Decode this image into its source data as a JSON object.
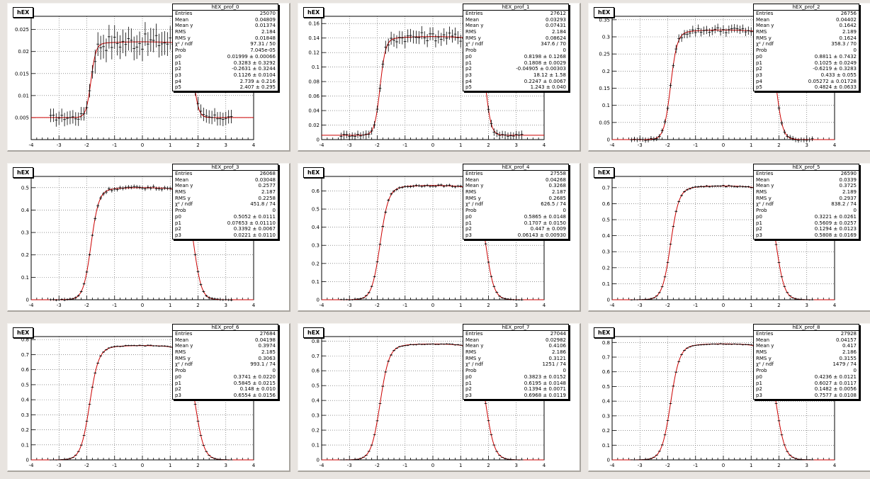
{
  "hist_label": "hEX",
  "stat_keys": [
    "Entries",
    "Mean",
    "Mean y",
    "RMS",
    "RMS y",
    "χ² / ndf",
    "Prob"
  ],
  "colors": {
    "fit": "#cc0000",
    "points": "#000000",
    "grid": "#555555",
    "canvas": "#e8e4e0"
  },
  "chart_data": [
    {
      "type": "scatter",
      "title": "hEX_prof_0",
      "xlabel": "",
      "ylabel": "",
      "xlim": [
        -4,
        4
      ],
      "ylim": [
        0,
        0.028
      ],
      "grid": true,
      "legend": "top-right",
      "x_ticks": [
        "-4",
        "-3",
        "-2",
        "-1",
        "0",
        "1",
        "2",
        "3",
        "4"
      ],
      "y_ticks": [
        "0.005",
        "0.01",
        "0.015",
        "0.02",
        "0.025"
      ],
      "y_tick_values": [
        0.005,
        0.01,
        0.015,
        0.02,
        0.025
      ],
      "base": 0.005,
      "plateau": 0.0222,
      "edge": 1.85,
      "width": 0.09,
      "noise": 0.0018,
      "fit_range": [
        -4,
        4
      ],
      "stats": {
        "title": "hEX_prof_0",
        "values": [
          "25070",
          "0.04809",
          "0.01374",
          "2.184",
          "0.01848",
          "97.31 / 50",
          "7.045e-05"
        ],
        "params": [
          [
            "p0",
            "0.01999 ± 0.00066"
          ],
          [
            "p1",
            "0.3283 ± 0.3292"
          ],
          [
            "p2",
            "-0.2631 ± 0.3244"
          ],
          [
            "p3",
            "0.1126 ± 0.0104"
          ],
          [
            "p4",
            "2.739 ± 0.216"
          ],
          [
            "p5",
            "2.407 ± 0.295"
          ]
        ]
      }
    },
    {
      "type": "scatter",
      "title": "hEX_prof_1",
      "xlabel": "",
      "ylabel": "",
      "xlim": [
        -4,
        4
      ],
      "ylim": [
        0,
        0.17
      ],
      "grid": true,
      "legend": "top-right",
      "x_ticks": [
        "-4",
        "-3",
        "-2",
        "-1",
        "0",
        "1",
        "2",
        "3",
        "4"
      ],
      "y_ticks": [
        "0",
        "0.02",
        "0.04",
        "0.06",
        "0.08",
        "0.1",
        "0.12",
        "0.14",
        "0.16"
      ],
      "y_tick_values": [
        0,
        0.02,
        0.04,
        0.06,
        0.08,
        0.1,
        0.12,
        0.14,
        0.16
      ],
      "base": 0.006,
      "plateau": 0.142,
      "edge": 1.9,
      "width": 0.1,
      "noise": 0.006,
      "fit_range": [
        -4,
        4
      ],
      "stats": {
        "title": "hEX_prof_1",
        "values": [
          "27612",
          "0.03293",
          "0.07431",
          "2.184",
          "0.08624",
          "347.6 / 70",
          "0"
        ],
        "params": [
          [
            "p0",
            "0.8198 ± 0.1268"
          ],
          [
            "p1",
            "0.1808 ± 0.0029"
          ],
          [
            "p2",
            "-0.04905 ± 0.00303"
          ],
          [
            "p3",
            "18.12 ± 1.58"
          ],
          [
            "p4",
            "0.2247 ± 0.0067"
          ],
          [
            "p5",
            "1.243 ± 0.040"
          ]
        ]
      }
    },
    {
      "type": "scatter",
      "title": "hEX_prof_2",
      "xlabel": "",
      "ylabel": "",
      "xlim": [
        -4,
        4
      ],
      "ylim": [
        0,
        0.36
      ],
      "grid": true,
      "legend": "top-right",
      "x_ticks": [
        "-4",
        "-3",
        "-2",
        "-1",
        "0",
        "1",
        "2",
        "3",
        "4"
      ],
      "y_ticks": [
        "0",
        "0.05",
        "0.1",
        "0.15",
        "0.2",
        "0.25",
        "0.3",
        "0.35"
      ],
      "y_tick_values": [
        0,
        0.05,
        0.1,
        0.15,
        0.2,
        0.25,
        0.3,
        0.35
      ],
      "base": 0.0,
      "plateau": 0.32,
      "edge": 1.9,
      "width": 0.12,
      "noise": 0.008,
      "fit_range": [
        -4,
        4
      ],
      "stats": {
        "title": "hEX_prof_2",
        "values": [
          "26756",
          "0.04402",
          "0.1642",
          "2.189",
          "0.1624",
          "358.3 / 70",
          "0"
        ],
        "params": [
          [
            "p0",
            "0.8811 ± 0.7432"
          ],
          [
            "p1",
            "0.1025 ± 0.0249"
          ],
          [
            "p2",
            "-0.6219 ± 0.3283"
          ],
          [
            "p3",
            "0.433 ± 0.055"
          ],
          [
            "p4",
            "0.05272 ± 0.01728"
          ],
          [
            "p5",
            "0.4824 ± 0.0633"
          ]
        ]
      }
    },
    {
      "type": "scatter",
      "title": "hEX_prof_3",
      "xlabel": "",
      "ylabel": "",
      "xlim": [
        -4,
        4
      ],
      "ylim": [
        0,
        0.55
      ],
      "grid": true,
      "legend": "top-right",
      "x_ticks": [
        "-4",
        "-3",
        "-2",
        "-1",
        "0",
        "1",
        "2",
        "3",
        "4"
      ],
      "y_ticks": [
        "0",
        "0.1",
        "0.2",
        "0.3",
        "0.4",
        "0.5"
      ],
      "y_tick_values": [
        0,
        0.1,
        0.2,
        0.3,
        0.4,
        0.5
      ],
      "base": 0.0,
      "plateau": 0.5,
      "edge": 1.85,
      "width": 0.14,
      "noise": 0.006,
      "fit_range": [
        -4,
        4
      ],
      "stats": {
        "title": "hEX_prof_3",
        "values": [
          "26068",
          "0.03048",
          "0.2577",
          "2.187",
          "0.2258",
          "451.8 / 74",
          "0"
        ],
        "params": [
          [
            "p0",
            "0.5052 ± 0.0111"
          ],
          [
            "p1",
            "0.07653 ± 0.01110"
          ],
          [
            "p2",
            "0.3392 ± 0.0067"
          ],
          [
            "p3",
            "0.0221 ± 0.0110"
          ]
        ]
      }
    },
    {
      "type": "scatter",
      "title": "hEX_prof_4",
      "xlabel": "",
      "ylabel": "",
      "xlim": [
        -4,
        4
      ],
      "ylim": [
        0,
        0.68
      ],
      "grid": true,
      "legend": "top-right",
      "x_ticks": [
        "-4",
        "-3",
        "-2",
        "-1",
        "0",
        "1",
        "2",
        "3",
        "4"
      ],
      "y_ticks": [
        "0",
        "0.1",
        "0.2",
        "0.3",
        "0.4",
        "0.5",
        "0.6"
      ],
      "y_tick_values": [
        0,
        0.1,
        0.2,
        0.3,
        0.4,
        0.5,
        0.6
      ],
      "base": 0.0,
      "plateau": 0.63,
      "edge": 1.9,
      "width": 0.15,
      "noise": 0.005,
      "fit_range": [
        -4,
        4
      ],
      "stats": {
        "title": "hEX_prof_4",
        "values": [
          "27558",
          "0.04268",
          "0.3268",
          "2.187",
          "0.2685",
          "626.5 / 74",
          "0"
        ],
        "params": [
          [
            "p0",
            "0.5865 ± 0.0148"
          ],
          [
            "p1",
            "0.1707 ± 0.0150"
          ],
          [
            "p2",
            "0.447 ± 0.009"
          ],
          [
            "p3",
            "0.06143 ± 0.00930"
          ]
        ]
      }
    },
    {
      "type": "scatter",
      "title": "hEX_prof_5",
      "xlabel": "",
      "ylabel": "",
      "xlim": [
        -4,
        4
      ],
      "ylim": [
        0,
        0.77
      ],
      "grid": true,
      "legend": "top-right",
      "x_ticks": [
        "-4",
        "-3",
        "-2",
        "-1",
        "0",
        "1",
        "2",
        "3",
        "4"
      ],
      "y_ticks": [
        "0",
        "0.1",
        "0.2",
        "0.3",
        "0.4",
        "0.5",
        "0.6",
        "0.7"
      ],
      "y_tick_values": [
        0,
        0.1,
        0.2,
        0.3,
        0.4,
        0.5,
        0.6,
        0.7
      ],
      "base": 0.0,
      "plateau": 0.71,
      "edge": 1.9,
      "width": 0.15,
      "noise": 0.004,
      "fit_range": [
        -4,
        4
      ],
      "stats": {
        "title": "hEX_prof_5",
        "values": [
          "26590",
          "0.0339",
          "0.3725",
          "2.189",
          "0.2937",
          "838.2 / 74",
          "0"
        ],
        "params": [
          [
            "p0",
            "0.3221 ± 0.0261"
          ],
          [
            "p1",
            "0.5609 ± 0.0257"
          ],
          [
            "p2",
            "0.1294 ± 0.0123"
          ],
          [
            "p3",
            "0.5808 ± 0.0169"
          ]
        ]
      }
    },
    {
      "type": "scatter",
      "title": "hEX_prof_6",
      "xlabel": "",
      "ylabel": "",
      "xlim": [
        -4,
        4
      ],
      "ylim": [
        0,
        0.82
      ],
      "grid": true,
      "legend": "top-right",
      "x_ticks": [
        "-4",
        "-3",
        "-2",
        "-1",
        "0",
        "1",
        "2",
        "3",
        "4"
      ],
      "y_ticks": [
        "0",
        "0.1",
        "0.2",
        "0.3",
        "0.4",
        "0.5",
        "0.6",
        "0.7",
        "0.8"
      ],
      "y_tick_values": [
        0,
        0.1,
        0.2,
        0.3,
        0.4,
        0.5,
        0.6,
        0.7,
        0.8
      ],
      "base": 0.0,
      "plateau": 0.76,
      "edge": 1.9,
      "width": 0.16,
      "noise": 0.003,
      "fit_range": [
        -4,
        4
      ],
      "stats": {
        "title": "hEX_prof_6",
        "values": [
          "27684",
          "0.04198",
          "0.3974",
          "2.185",
          "0.3063",
          "993.1 / 74",
          "0"
        ],
        "params": [
          [
            "p0",
            "0.3741 ± 0.0220"
          ],
          [
            "p1",
            "0.5845 ± 0.0215"
          ],
          [
            "p2",
            "0.148 ± 0.010"
          ],
          [
            "p3",
            "0.6554 ± 0.0156"
          ]
        ]
      }
    },
    {
      "type": "scatter",
      "title": "hEX_prof_7",
      "xlabel": "",
      "ylabel": "",
      "xlim": [
        -4,
        4
      ],
      "ylim": [
        0,
        0.83
      ],
      "grid": true,
      "legend": "top-right",
      "x_ticks": [
        "-4",
        "-3",
        "-2",
        "-1",
        "0",
        "1",
        "2",
        "3",
        "4"
      ],
      "y_ticks": [
        "0",
        "0.1",
        "0.2",
        "0.3",
        "0.4",
        "0.5",
        "0.6",
        "0.7",
        "0.8"
      ],
      "y_tick_values": [
        0,
        0.1,
        0.2,
        0.3,
        0.4,
        0.5,
        0.6,
        0.7,
        0.8
      ],
      "base": 0.0,
      "plateau": 0.78,
      "edge": 1.9,
      "width": 0.16,
      "noise": 0.003,
      "fit_range": [
        -4,
        4
      ],
      "stats": {
        "title": "hEX_prof_7",
        "values": [
          "27044",
          "0.02982",
          "0.4106",
          "2.186",
          "0.3121",
          "1251 / 74",
          "0"
        ],
        "params": [
          [
            "p0",
            "0.3823 ± 0.0152"
          ],
          [
            "p1",
            "0.6195 ± 0.0148"
          ],
          [
            "p2",
            "0.1394 ± 0.0071"
          ],
          [
            "p3",
            "0.6968 ± 0.0119"
          ]
        ]
      }
    },
    {
      "type": "scatter",
      "title": "hEX_prof_8",
      "xlabel": "",
      "ylabel": "",
      "xlim": [
        -4,
        4
      ],
      "ylim": [
        0,
        0.84
      ],
      "grid": true,
      "legend": "top-right",
      "x_ticks": [
        "-4",
        "-3",
        "-2",
        "-1",
        "0",
        "1",
        "2",
        "3",
        "4"
      ],
      "y_ticks": [
        "0",
        "0.1",
        "0.2",
        "0.3",
        "0.4",
        "0.5",
        "0.6",
        "0.7",
        "0.8"
      ],
      "y_tick_values": [
        0,
        0.1,
        0.2,
        0.3,
        0.4,
        0.5,
        0.6,
        0.7,
        0.8
      ],
      "base": 0.0,
      "plateau": 0.79,
      "edge": 1.9,
      "width": 0.16,
      "noise": 0.003,
      "fit_range": [
        -4,
        4
      ],
      "stats": {
        "title": "hEX_prof_8",
        "values": [
          "27928",
          "0.04157",
          "0.417",
          "2.186",
          "0.3155",
          "1479 / 74",
          "0"
        ],
        "params": [
          [
            "p0",
            "0.4236 ± 0.0121"
          ],
          [
            "p1",
            "0.6027 ± 0.0117"
          ],
          [
            "p2",
            "0.1482 ± 0.0056"
          ],
          [
            "p3",
            "0.7577 ± 0.0108"
          ]
        ]
      }
    }
  ]
}
